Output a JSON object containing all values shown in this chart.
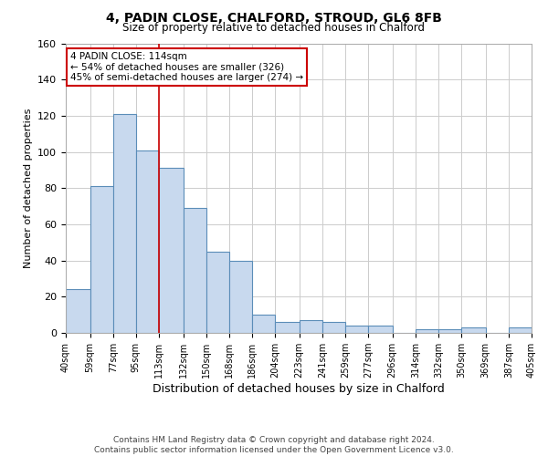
{
  "title": "4, PADIN CLOSE, CHALFORD, STROUD, GL6 8FB",
  "subtitle": "Size of property relative to detached houses in Chalford",
  "xlabel": "Distribution of detached houses by size in Chalford",
  "ylabel": "Number of detached properties",
  "bar_values": [
    24,
    81,
    121,
    101,
    91,
    69,
    45,
    40,
    10,
    6,
    7,
    6,
    4,
    4,
    0,
    2,
    2,
    3,
    0,
    3
  ],
  "bin_labels": [
    "40sqm",
    "59sqm",
    "77sqm",
    "95sqm",
    "113sqm",
    "132sqm",
    "150sqm",
    "168sqm",
    "186sqm",
    "204sqm",
    "223sqm",
    "241sqm",
    "259sqm",
    "277sqm",
    "296sqm",
    "314sqm",
    "332sqm",
    "350sqm",
    "369sqm",
    "387sqm",
    "405sqm"
  ],
  "bin_edges": [
    40,
    59,
    77,
    95,
    113,
    132,
    150,
    168,
    186,
    204,
    223,
    241,
    259,
    277,
    296,
    314,
    332,
    350,
    369,
    387,
    405
  ],
  "bar_color": "#c8d9ee",
  "bar_edge_color": "#5b8db8",
  "property_line_x": 113,
  "annotation_line1": "4 PADIN CLOSE: 114sqm",
  "annotation_line2": "← 54% of detached houses are smaller (326)",
  "annotation_line3": "45% of semi-detached houses are larger (274) →",
  "annotation_box_color": "#ffffff",
  "annotation_box_edge": "#cc0000",
  "ylim": [
    0,
    160
  ],
  "yticks": [
    0,
    20,
    40,
    60,
    80,
    100,
    120,
    140,
    160
  ],
  "footer_line1": "Contains HM Land Registry data © Crown copyright and database right 2024.",
  "footer_line2": "Contains public sector information licensed under the Open Government Licence v3.0.",
  "background_color": "#ffffff",
  "grid_color": "#cccccc"
}
